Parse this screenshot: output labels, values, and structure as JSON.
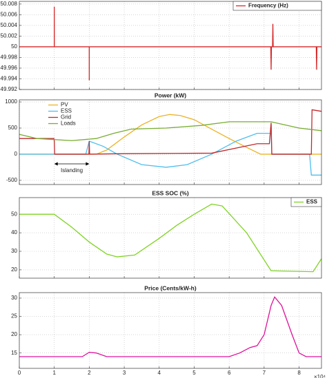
{
  "chart_data": [
    {
      "type": "line",
      "legend": "upper right",
      "grid": true,
      "show_xtick_labels": false,
      "xlim": [
        0,
        8.64
      ],
      "xticks": [
        0,
        1,
        2,
        3,
        4,
        5,
        6,
        7,
        8
      ],
      "ylim": [
        49.992,
        50.0085
      ],
      "yticks": [
        49.992,
        49.994,
        49.996,
        49.998,
        50,
        50.002,
        50.004,
        50.006,
        50.008
      ],
      "series": [
        {
          "name": "Frequency (Hz)",
          "color": "#d62728",
          "x": [
            0,
            0.999,
            1,
            1.001,
            1.999,
            2,
            2.001,
            7.19,
            7.2,
            7.21,
            7.24,
            7.25,
            7.26,
            8.49,
            8.5,
            8.51,
            8.64
          ],
          "values": [
            50,
            50,
            50.0075,
            50,
            50,
            49.9937,
            50,
            50,
            49.9957,
            50,
            50,
            50.0043,
            50,
            50,
            49.9957,
            50,
            50
          ]
        }
      ]
    },
    {
      "type": "line",
      "title": "Power  (kW)",
      "legend": "upper left",
      "grid": true,
      "show_xtick_labels": false,
      "annotation": "Islanding",
      "xlim": [
        0,
        8.64
      ],
      "xticks": [
        0,
        1,
        2,
        3,
        4,
        5,
        6,
        7,
        8
      ],
      "ylim": [
        -580,
        1040
      ],
      "yticks": [
        -500,
        0,
        500,
        1000
      ],
      "series": [
        {
          "name": "PV",
          "color": "#edb120",
          "x": [
            0,
            2.2,
            2.5,
            3,
            3.5,
            4,
            4.3,
            4.6,
            5,
            5.5,
            6,
            6.5,
            6.9,
            8.64
          ],
          "values": [
            0,
            0,
            80,
            330,
            560,
            720,
            760,
            740,
            660,
            480,
            300,
            130,
            0,
            0
          ]
        },
        {
          "name": "ESS",
          "color": "#4dbeee",
          "x": [
            0,
            1.9,
            2.0,
            2.4,
            2.8,
            3.5,
            4.2,
            4.8,
            5.5,
            6.2,
            6.8,
            7.2,
            7.22,
            8.3,
            8.35,
            8.64
          ],
          "values": [
            0,
            0,
            250,
            150,
            0,
            -200,
            -250,
            -200,
            0,
            250,
            400,
            400,
            0,
            0,
            -400,
            -400
          ]
        },
        {
          "name": "Grid",
          "color": "#c0282b",
          "x": [
            0,
            0.99,
            1,
            1.01,
            1.99,
            2,
            2.01,
            3,
            5.5,
            6.8,
            7.15,
            7.2,
            7.22,
            8.35,
            8.37,
            8.64
          ],
          "values": [
            300,
            300,
            250,
            0,
            0,
            250,
            0,
            10,
            20,
            200,
            200,
            600,
            0,
            0,
            850,
            820
          ]
        },
        {
          "name": "Loads",
          "color": "#77ac30",
          "x": [
            0,
            0.5,
            1.5,
            2.2,
            2.7,
            3.2,
            4.2,
            5.2,
            6,
            7.2,
            8,
            8.64
          ],
          "values": [
            380,
            300,
            260,
            300,
            400,
            480,
            500,
            550,
            620,
            620,
            500,
            450
          ]
        }
      ]
    },
    {
      "type": "line",
      "title": "ESS SOC (%)",
      "legend": "upper right",
      "grid": true,
      "show_xtick_labels": false,
      "xlim": [
        0,
        8.64
      ],
      "xticks": [
        0,
        1,
        2,
        3,
        4,
        5,
        6,
        7,
        8
      ],
      "ylim": [
        15.5,
        59
      ],
      "yticks": [
        20,
        30,
        40,
        50
      ],
      "series": [
        {
          "name": "ESS",
          "color": "#7ed321",
          "x": [
            0,
            1,
            1.5,
            2,
            2.5,
            2.8,
            3.3,
            4,
            4.5,
            5,
            5.5,
            5.8,
            6.5,
            7.2,
            8.4,
            8.64
          ],
          "values": [
            50,
            50,
            43,
            35,
            28.5,
            27,
            28,
            37,
            44,
            50,
            55.5,
            54.5,
            40,
            19.5,
            19,
            26
          ]
        }
      ]
    },
    {
      "type": "line",
      "title": "Price (Cents/kW-h)",
      "grid": true,
      "show_xtick_labels": true,
      "x_multiplier": "×10⁴",
      "xlim": [
        0,
        8.64
      ],
      "xticks": [
        0,
        1,
        2,
        3,
        4,
        5,
        6,
        7,
        8
      ],
      "ylim": [
        10.8,
        31.5
      ],
      "yticks": [
        15,
        20,
        25,
        30
      ],
      "series": [
        {
          "color": "#e0109b",
          "x": [
            0,
            1.8,
            2,
            2.2,
            2.5,
            6,
            6.3,
            6.6,
            6.8,
            7,
            7.2,
            7.3,
            7.5,
            7.8,
            8,
            8.2,
            8.64
          ],
          "values": [
            14,
            14,
            15.2,
            15,
            14,
            14,
            15,
            16.5,
            17,
            20,
            28,
            30.3,
            28,
            20,
            15,
            14,
            14
          ]
        }
      ]
    }
  ]
}
